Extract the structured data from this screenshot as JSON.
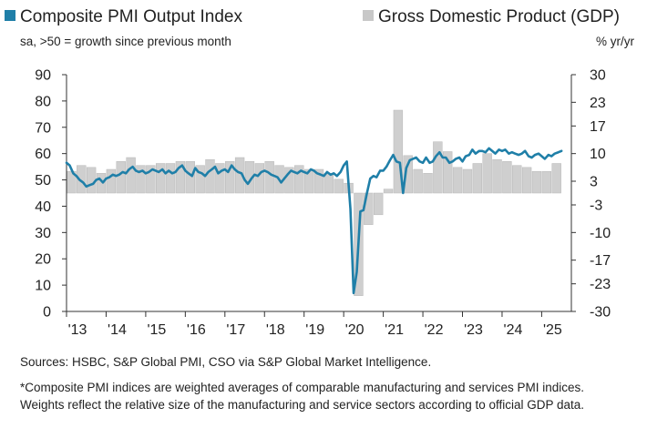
{
  "legend": {
    "pmi_label": "Composite PMI Output Index",
    "gdp_label": "Gross Domestic Product (GDP)",
    "left_subtitle": "sa, >50 = growth since previous month",
    "right_subtitle": "% yr/yr"
  },
  "footer": {
    "sources": "Sources: HSBC, S&P Global PMI, CSO via S&P Global Market Intelligence.",
    "note": "*Composite PMI indices are weighted averages of comparable manufacturing and services PMI indices. Weights reflect the relative size of the manufacturing and service sectors according to official GDP data."
  },
  "chart_data": {
    "type": "line",
    "grid": false,
    "x_range": [
      2013.0,
      2025.75
    ],
    "x_tick_labels": [
      "'13",
      "'14",
      "'15",
      "'16",
      "'17",
      "'18",
      "'19",
      "'20",
      "'21",
      "'22",
      "'23",
      "'24",
      "'25"
    ],
    "y_left": {
      "range": [
        0,
        90
      ],
      "ticks": [
        0,
        10,
        20,
        30,
        40,
        50,
        60,
        70,
        80,
        90
      ]
    },
    "y_right": {
      "range": [
        -30,
        30
      ],
      "ticks": [
        -30,
        -23,
        -17,
        -10,
        -3,
        3,
        10,
        17,
        23,
        30
      ],
      "baseline": 0
    },
    "colors": {
      "pmi": "#1f7fa8",
      "gdp": "#cfcfcf",
      "gdp_edge": "#b8b8b8",
      "axis": "#333333"
    },
    "series": [
      {
        "name": "Composite PMI Output Index",
        "axis": "left",
        "x": [
          2013.0,
          2013.08,
          2013.17,
          2013.25,
          2013.33,
          2013.42,
          2013.5,
          2013.58,
          2013.67,
          2013.75,
          2013.83,
          2013.92,
          2014.0,
          2014.08,
          2014.17,
          2014.25,
          2014.33,
          2014.42,
          2014.5,
          2014.58,
          2014.67,
          2014.75,
          2014.83,
          2014.92,
          2015.0,
          2015.08,
          2015.17,
          2015.25,
          2015.33,
          2015.42,
          2015.5,
          2015.58,
          2015.67,
          2015.75,
          2015.83,
          2015.92,
          2016.0,
          2016.08,
          2016.17,
          2016.25,
          2016.33,
          2016.42,
          2016.5,
          2016.58,
          2016.67,
          2016.75,
          2016.83,
          2016.92,
          2017.0,
          2017.08,
          2017.17,
          2017.25,
          2017.33,
          2017.42,
          2017.5,
          2017.58,
          2017.67,
          2017.75,
          2017.83,
          2017.92,
          2018.0,
          2018.08,
          2018.17,
          2018.25,
          2018.33,
          2018.42,
          2018.5,
          2018.58,
          2018.67,
          2018.75,
          2018.83,
          2018.92,
          2019.0,
          2019.08,
          2019.17,
          2019.25,
          2019.33,
          2019.42,
          2019.5,
          2019.58,
          2019.67,
          2019.75,
          2019.83,
          2019.92,
          2020.0,
          2020.08,
          2020.17,
          2020.25,
          2020.33,
          2020.42,
          2020.5,
          2020.58,
          2020.67,
          2020.75,
          2020.83,
          2020.92,
          2021.0,
          2021.08,
          2021.17,
          2021.25,
          2021.33,
          2021.42,
          2021.5,
          2021.58,
          2021.67,
          2021.75,
          2021.83,
          2021.92,
          2022.0,
          2022.08,
          2022.17,
          2022.25,
          2022.33,
          2022.42,
          2022.5,
          2022.58,
          2022.67,
          2022.75,
          2022.83,
          2022.92,
          2023.0,
          2023.08,
          2023.17,
          2023.25,
          2023.33,
          2023.42,
          2023.5,
          2023.58,
          2023.67,
          2023.75,
          2023.83,
          2023.92,
          2024.0,
          2024.08,
          2024.17,
          2024.25,
          2024.33,
          2024.42,
          2024.5,
          2024.58,
          2024.67,
          2024.75,
          2024.83,
          2024.92,
          2025.0,
          2025.08,
          2025.17,
          2025.25,
          2025.33,
          2025.42,
          2025.5
        ],
        "values": [
          56.5,
          55.5,
          52.5,
          51.5,
          50.0,
          49.0,
          47.5,
          48.0,
          48.5,
          50.0,
          50.5,
          49.0,
          50.5,
          51.0,
          52.0,
          51.5,
          52.0,
          53.0,
          52.5,
          54.0,
          55.0,
          53.5,
          53.0,
          53.5,
          52.5,
          53.0,
          54.0,
          53.5,
          53.0,
          54.0,
          52.5,
          53.5,
          52.5,
          53.0,
          54.5,
          55.5,
          53.5,
          52.5,
          51.5,
          54.5,
          53.0,
          52.5,
          51.5,
          53.0,
          54.0,
          55.0,
          52.5,
          53.5,
          54.0,
          53.0,
          55.5,
          54.0,
          53.0,
          52.5,
          50.0,
          48.5,
          50.5,
          52.0,
          51.5,
          53.0,
          53.5,
          53.0,
          52.0,
          51.5,
          51.0,
          49.0,
          50.5,
          52.0,
          53.5,
          53.0,
          52.5,
          53.5,
          53.0,
          52.5,
          54.0,
          53.5,
          52.5,
          52.0,
          51.5,
          53.0,
          52.0,
          52.5,
          51.5,
          53.0,
          55.5,
          57.0,
          39.0,
          7.0,
          15.0,
          38.0,
          38.5,
          44.5,
          50.5,
          51.5,
          51.0,
          53.5,
          53.5,
          55.0,
          57.5,
          59.5,
          57.0,
          56.5,
          45.0,
          54.5,
          57.5,
          58.0,
          58.5,
          57.0,
          56.5,
          58.5,
          56.5,
          57.0,
          59.0,
          60.5,
          58.5,
          58.5,
          56.5,
          57.0,
          58.0,
          58.5,
          57.0,
          59.0,
          59.5,
          61.5,
          60.0,
          61.0,
          61.0,
          60.5,
          62.0,
          61.0,
          60.0,
          61.5,
          61.0,
          61.5,
          60.0,
          60.5,
          60.0,
          59.5,
          60.0,
          61.0,
          59.0,
          58.5,
          59.5,
          60.0,
          59.0,
          58.0,
          59.5,
          59.0,
          60.0,
          60.5,
          61.0
        ]
      },
      {
        "name": "Gross Domestic Product (GDP)",
        "axis": "right",
        "type": "bar",
        "x": [
          2013.125,
          2013.375,
          2013.625,
          2013.875,
          2014.125,
          2014.375,
          2014.625,
          2014.875,
          2015.125,
          2015.375,
          2015.625,
          2015.875,
          2016.125,
          2016.375,
          2016.625,
          2016.875,
          2017.125,
          2017.375,
          2017.625,
          2017.875,
          2018.125,
          2018.375,
          2018.625,
          2018.875,
          2019.125,
          2019.375,
          2019.625,
          2019.875,
          2020.125,
          2020.375,
          2020.625,
          2020.875,
          2021.125,
          2021.375,
          2021.625,
          2021.875,
          2022.125,
          2022.375,
          2022.625,
          2022.875,
          2023.125,
          2023.375,
          2023.625,
          2023.875,
          2024.125,
          2024.375,
          2024.625,
          2024.875,
          2025.125,
          2025.375
        ],
        "values": [
          5.5,
          7.0,
          6.5,
          5.0,
          6.0,
          8.0,
          9.0,
          7.0,
          7.0,
          7.5,
          7.5,
          8.0,
          8.0,
          7.0,
          8.5,
          7.5,
          8.0,
          9.0,
          8.0,
          7.5,
          8.0,
          7.0,
          6.5,
          7.0,
          6.0,
          6.0,
          5.0,
          3.5,
          2.5,
          -26.0,
          -8.0,
          -5.5,
          1.0,
          21.0,
          9.5,
          6.0,
          5.0,
          13.0,
          10.5,
          6.5,
          6.0,
          7.5,
          10.0,
          8.5,
          8.0,
          7.0,
          6.5,
          5.5,
          5.5,
          7.5
        ]
      }
    ]
  }
}
